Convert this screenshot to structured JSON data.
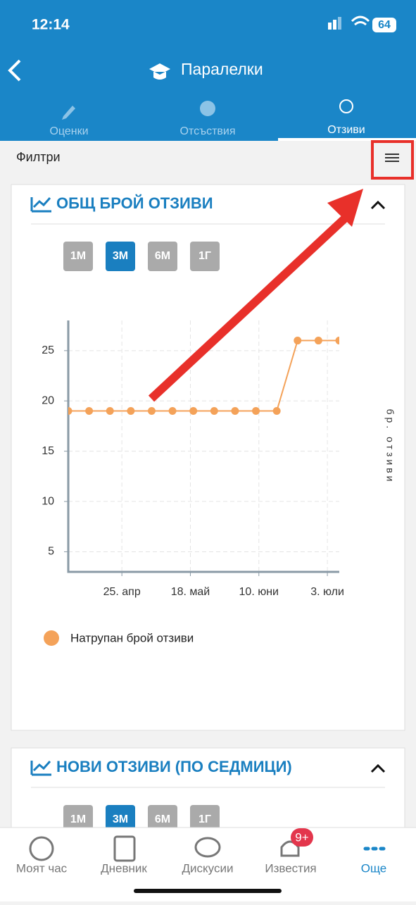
{
  "status_bar": {
    "time": "12:14",
    "battery": "64"
  },
  "header": {
    "title": "Паралелки"
  },
  "tabs": [
    "Оценки",
    "Отсъствия",
    "Отзиви"
  ],
  "filter": {
    "label": "Филтри"
  },
  "cards": [
    {
      "title": "ОБЩ БРОЙ ОТЗИВИ",
      "ranges": [
        "1М",
        "3М",
        "6М",
        "1Г"
      ]
    },
    {
      "title": "НОВИ ОТЗИВИ (ПО СЕДМИЦИ)",
      "ranges": [
        "1М",
        "3М",
        "6М",
        "1Г"
      ]
    }
  ],
  "chart_data": {
    "type": "line",
    "ylabel": "бр. отзиви",
    "x": [
      "04-07",
      "04-14",
      "04-21",
      "04-28",
      "05-05",
      "05-12",
      "05-19",
      "05-26",
      "06-02",
      "06-09",
      "06-16",
      "06-23",
      "06-30",
      "07-07"
    ],
    "xlim": [
      "04-07",
      "07-07"
    ],
    "xticks": [
      {
        "value": "04-25",
        "label": "25. апр"
      },
      {
        "value": "05-18",
        "label": "18. май"
      },
      {
        "value": "06-10",
        "label": "10. юни"
      },
      {
        "value": "07-03",
        "label": "3. юли"
      }
    ],
    "ylim": [
      3,
      28
    ],
    "yticks": [
      5,
      10,
      15,
      20,
      25
    ],
    "grid": true,
    "series": [
      {
        "name": "Натрупан брой отзиви",
        "color": "#f4a259",
        "values": [
          19,
          19,
          19,
          19,
          19,
          19,
          19,
          19,
          19,
          19,
          19,
          26,
          26,
          26
        ]
      }
    ]
  },
  "bottom_nav": {
    "items": [
      "Моят час",
      "Дневник",
      "Дискусии",
      "Известия",
      "Още"
    ],
    "badge": "9+"
  }
}
